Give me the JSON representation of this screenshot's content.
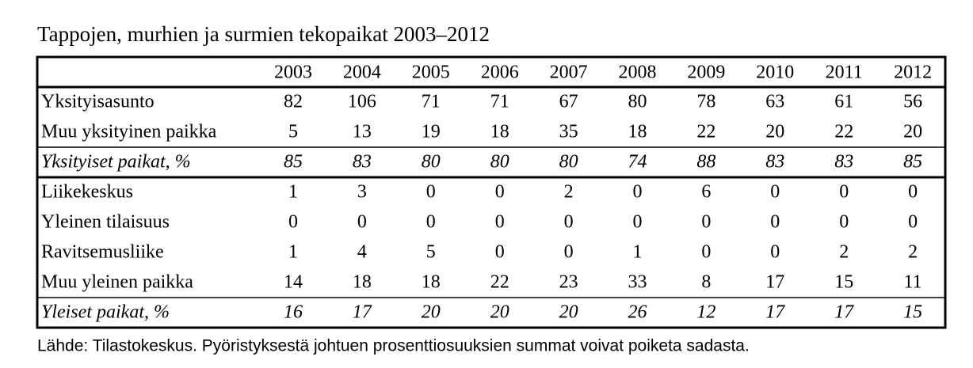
{
  "title": "Tappojen, murhien ja surmien tekopaikat 2003–2012",
  "table": {
    "columns": [
      "2003",
      "2004",
      "2005",
      "2006",
      "2007",
      "2008",
      "2009",
      "2010",
      "2011",
      "2012"
    ],
    "sections": [
      {
        "rows": [
          {
            "label": "Yksityisasunto",
            "values": [
              82,
              106,
              71,
              71,
              67,
              80,
              78,
              63,
              61,
              56
            ]
          },
          {
            "label": "Muu yksityinen paikka",
            "values": [
              5,
              13,
              19,
              18,
              35,
              18,
              22,
              20,
              22,
              20
            ]
          }
        ],
        "share": {
          "label": "Yksityiset paikat, %",
          "values": [
            85,
            83,
            80,
            80,
            80,
            74,
            88,
            83,
            83,
            85
          ]
        }
      },
      {
        "rows": [
          {
            "label": "Liikekeskus",
            "values": [
              1,
              3,
              0,
              0,
              2,
              0,
              6,
              0,
              0,
              0
            ]
          },
          {
            "label": "Yleinen tilaisuus",
            "values": [
              0,
              0,
              0,
              0,
              0,
              0,
              0,
              0,
              0,
              0
            ]
          },
          {
            "label": "Ravitsemusliike",
            "values": [
              1,
              4,
              5,
              0,
              0,
              1,
              0,
              0,
              2,
              2
            ]
          },
          {
            "label": "Muu yleinen paikka",
            "values": [
              14,
              18,
              18,
              22,
              23,
              33,
              8,
              17,
              15,
              11
            ]
          }
        ],
        "share": {
          "label": "Yleiset paikat, %",
          "values": [
            16,
            17,
            20,
            20,
            20,
            26,
            12,
            17,
            17,
            15
          ]
        }
      }
    ]
  },
  "source": "Lähde: Tilastokeskus. Pyöristyksestä johtuen prosenttiosuuksien summat voivat poiketa sadasta."
}
